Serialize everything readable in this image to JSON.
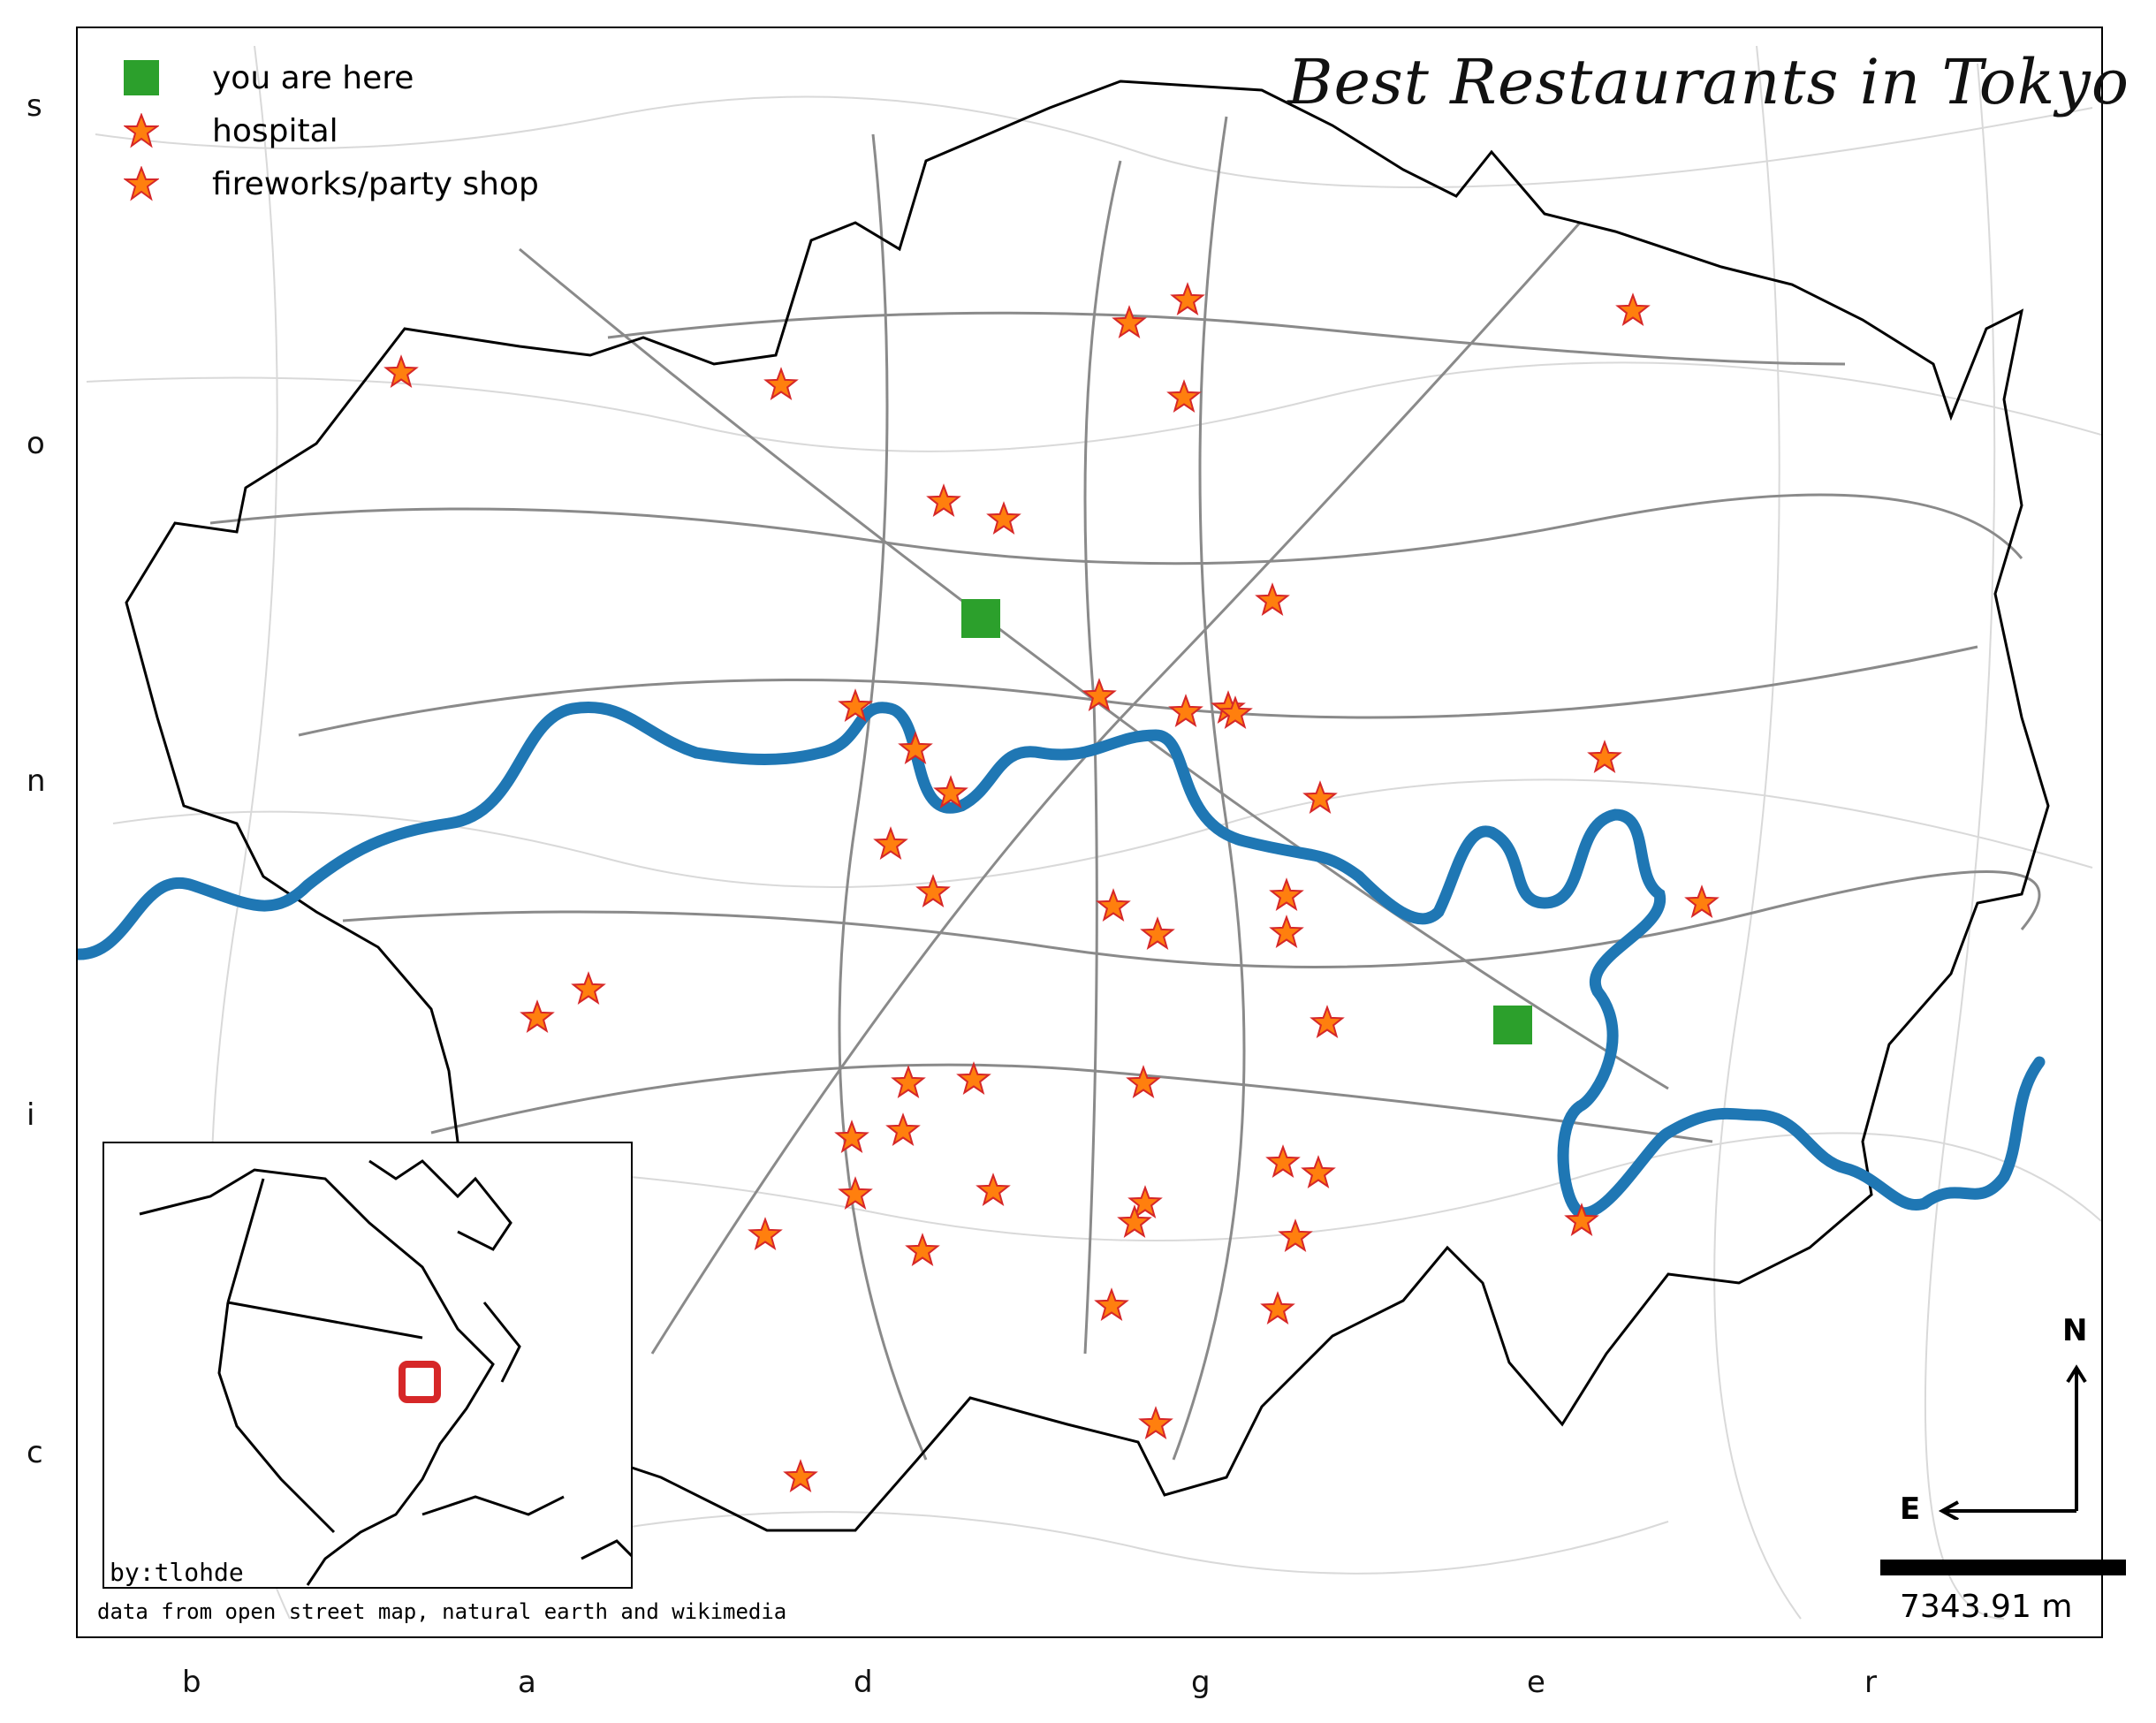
{
  "title": "Best Restaurants in Tokyo",
  "legend": {
    "you_are_here": "you are here",
    "hospital": "hospital",
    "fireworks": "fireworks/party shop"
  },
  "y_ticks": [
    "s",
    "o",
    "n",
    "i",
    "c"
  ],
  "x_ticks": [
    "b",
    "a",
    "d",
    "g",
    "e",
    "r"
  ],
  "inset": {
    "byline": "by:tlohde"
  },
  "credit": "data from open street map, natural earth and wikimedia",
  "scale_bar": {
    "label": "7343.91 m"
  },
  "compass": {
    "north": "N",
    "east": "E"
  },
  "colors": {
    "river": "#1f77b4",
    "you_are_here": "#2ca02c",
    "star_fill": "#ff7f0e",
    "star_edge": "#d62728",
    "roads_major": "#7f7f7f",
    "roads_minor": "#d0d0d0",
    "inset_box": "#d62728"
  },
  "icons": [
    "you-are-here-marker",
    "hospital-star-icon",
    "fireworks-star-icon",
    "north-arrow-icon",
    "east-arrow-icon"
  ]
}
